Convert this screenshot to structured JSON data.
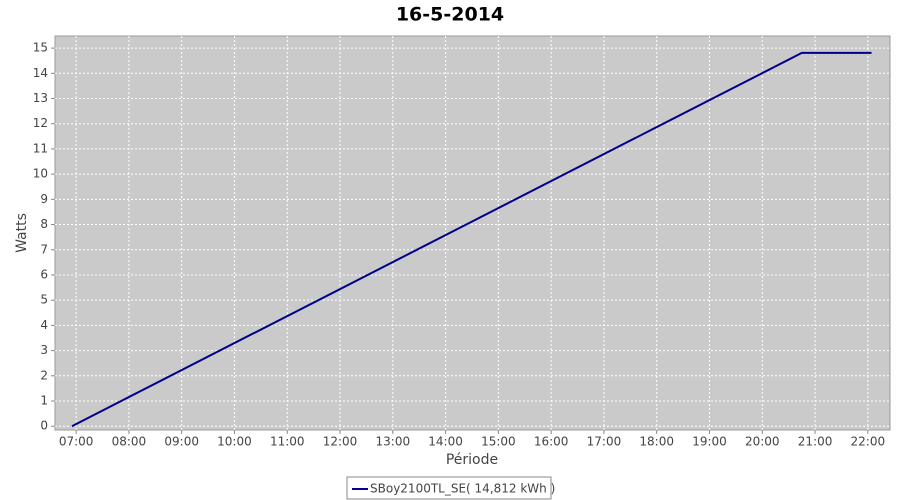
{
  "chart_data": {
    "type": "line",
    "title": "16-5-2014",
    "x_label": "Période",
    "y_label": "Watts",
    "x": [
      6.92,
      20.75,
      22.07
    ],
    "series": [
      {
        "name": "SBoy2100TL_SE( 14,812 kWh )",
        "color": "#00008b",
        "values": [
          0,
          14.812,
          14.812
        ]
      }
    ],
    "xlim": [
      6.6,
      22.42
    ],
    "xticks": [
      {
        "value": 7,
        "label": "07:00"
      },
      {
        "value": 8,
        "label": "08:00"
      },
      {
        "value": 9,
        "label": "09:00"
      },
      {
        "value": 10,
        "label": "10:00"
      },
      {
        "value": 11,
        "label": "11:00"
      },
      {
        "value": 12,
        "label": "12:00"
      },
      {
        "value": 13,
        "label": "13:00"
      },
      {
        "value": 14,
        "label": "14:00"
      },
      {
        "value": 15,
        "label": "15:00"
      },
      {
        "value": 16,
        "label": "16:00"
      },
      {
        "value": 17,
        "label": "17:00"
      },
      {
        "value": 18,
        "label": "18:00"
      },
      {
        "value": 19,
        "label": "19:00"
      },
      {
        "value": 20,
        "label": "20:00"
      },
      {
        "value": 21,
        "label": "21:00"
      },
      {
        "value": 22,
        "label": "22:00"
      }
    ],
    "ylim": [
      -0.15,
      15.48
    ],
    "yticks": [
      0,
      1,
      2,
      3,
      4,
      5,
      6,
      7,
      8,
      9,
      10,
      11,
      12,
      13,
      14,
      15
    ],
    "grid": true
  }
}
